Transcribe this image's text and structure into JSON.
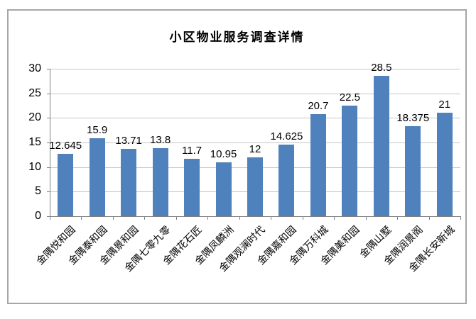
{
  "chart_data": {
    "type": "bar",
    "title": "小区物业服务调查详情",
    "categories": [
      "金隅悦和园",
      "金隅泰和园",
      "金隅景和园",
      "金隅七零九零",
      "金隅花石匠",
      "金隅凤麟洲",
      "金隅观澜时代",
      "金隅嘉和园",
      "金隅万科城",
      "金隅美和园",
      "金隅山墅",
      "金隅润景阁",
      "金隅长安新城"
    ],
    "values": [
      12.645,
      15.9,
      13.71,
      13.8,
      11.7,
      10.95,
      12,
      14.625,
      20.7,
      22.5,
      28.5,
      18.375,
      21
    ],
    "xlabel": "",
    "ylabel": "",
    "ylim": [
      0,
      30
    ],
    "ytick_interval": 5,
    "ytick_labels": [
      "0",
      "5",
      "10",
      "15",
      "20",
      "25",
      "30"
    ],
    "grid": true,
    "legend": false,
    "bar_color": "#4F81BD",
    "gridline_color": "#C6C6C6",
    "axis_color": "#808080",
    "frame_border_color": "#A6A6A6",
    "text_color": "#000000",
    "background_color": "#FFFFFF"
  }
}
